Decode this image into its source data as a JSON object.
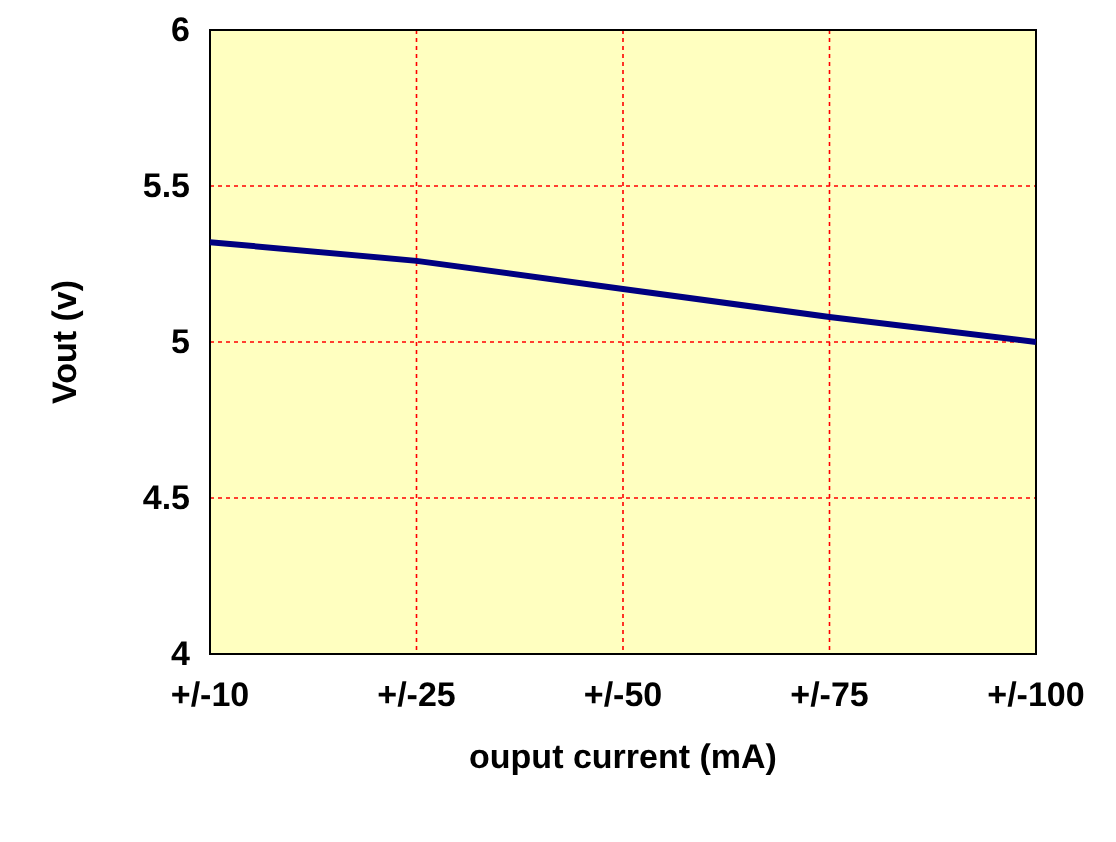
{
  "chart_data": {
    "type": "line",
    "xlabel": "ouput current (mA)",
    "ylabel": "Vout (v)",
    "categories": [
      "+/-10",
      "+/-25",
      "+/-50",
      "+/-75",
      "+/-100"
    ],
    "series": [
      {
        "color": "#000080",
        "values": [
          5.32,
          5.26,
          5.17,
          5.08,
          5.0
        ]
      }
    ],
    "ylim": [
      4,
      6
    ],
    "yticks": [
      4,
      4.5,
      5,
      5.5,
      6
    ],
    "grid": true,
    "marker": "none",
    "line_style": "solid"
  }
}
